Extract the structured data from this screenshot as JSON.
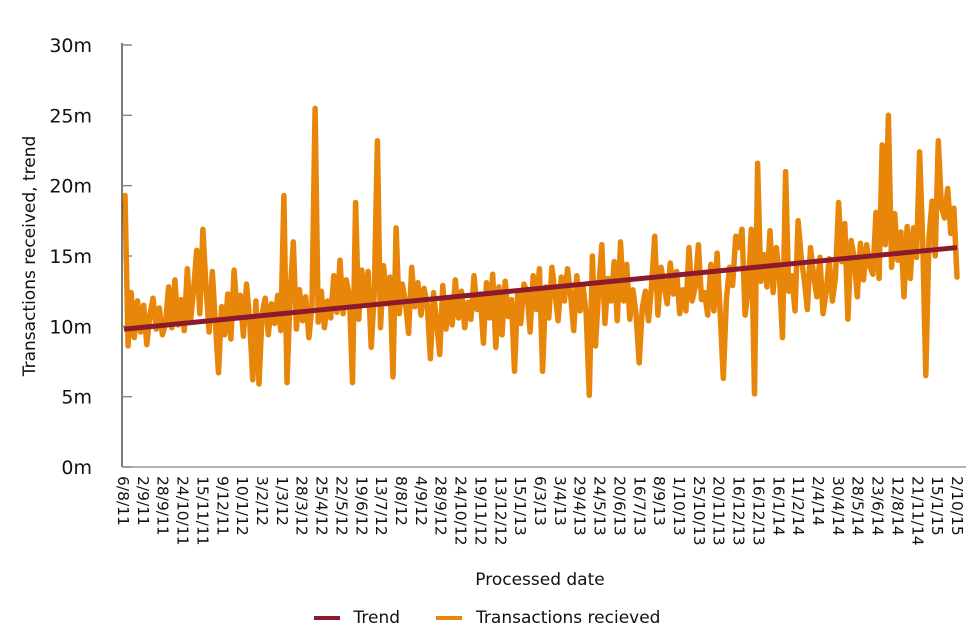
{
  "chart_data": {
    "type": "line",
    "title": "",
    "xlabel": "Processed date",
    "ylabel": "Transactions received, trend",
    "ylim": [
      0,
      30
    ],
    "y_unit": "m",
    "yticks": [
      "0m",
      "5m",
      "10m",
      "15m",
      "20m",
      "25m",
      "30m"
    ],
    "ytick_values": [
      0,
      5,
      10,
      15,
      20,
      25,
      30
    ],
    "xtick_labels": [
      "6/8/11",
      "2/9/11",
      "28/9/11",
      "24/10/11",
      "15/11/11",
      "9/12/11",
      "10/1/12",
      "3/2/12",
      "1/3/12",
      "28/3/12",
      "25/4/12",
      "22/5/12",
      "19/6/12",
      "13/7/12",
      "8/8/12",
      "4/9/12",
      "28/9/12",
      "24/10/12",
      "19/11/12",
      "13/12/12",
      "15/1/13",
      "6/3/13",
      "3/4/13",
      "29/4/13",
      "24/5/13",
      "20/6/13",
      "16/7/13",
      "8/9/13",
      "1/10/13",
      "25/10/13",
      "20/11/13",
      "16/12/13",
      "16/12/13",
      "16/1/14",
      "11/2/14",
      "2/4/14",
      "30/4/14",
      "28/5/14",
      "23/6/14",
      "12/8/14",
      "21/11/14",
      "15/1/15",
      "2/10/15"
    ],
    "grid": false,
    "legend_position": "bottom",
    "legend": [
      "Trend",
      "Transactions recieved"
    ],
    "colors": {
      "trend": "#8b1a2e",
      "transactions": "#e8860a",
      "axis": "#222222",
      "tick": "#888888"
    },
    "series": [
      {
        "name": "Transactions recieved",
        "values": [
          19.3,
          8.6,
          12.4,
          9.2,
          11.8,
          9.6,
          11.5,
          8.7,
          10.8,
          12.0,
          9.8,
          11.3,
          9.4,
          10.2,
          12.8,
          9.9,
          13.3,
          10.1,
          11.9,
          9.7,
          14.1,
          10.3,
          12.6,
          15.4,
          10.9,
          16.9,
          12.8,
          9.6,
          13.9,
          10.2,
          6.7,
          11.4,
          9.4,
          12.3,
          9.1,
          14.0,
          10.8,
          12.2,
          9.3,
          13.0,
          10.5,
          6.2,
          11.8,
          5.9,
          10.9,
          12.0,
          9.4,
          11.6,
          10.2,
          12.2,
          9.7,
          19.3,
          6.0,
          12.4,
          16.0,
          9.8,
          12.6,
          10.4,
          12.1,
          9.2,
          11.5,
          25.5,
          10.3,
          12.5,
          9.9,
          11.8,
          10.6,
          13.6,
          11.0,
          14.7,
          10.9,
          13.3,
          12.2,
          6.0,
          18.8,
          10.5,
          14.0,
          11.8,
          13.9,
          8.5,
          12.4,
          23.2,
          9.9,
          14.3,
          11.6,
          13.5,
          6.4,
          17.0,
          10.9,
          13.0,
          11.7,
          9.5,
          14.2,
          11.4,
          13.1,
          10.8,
          12.7,
          11.5,
          7.7,
          12.4,
          10.3,
          8.0,
          12.9,
          9.8,
          11.9,
          10.1,
          13.3,
          10.6,
          12.5,
          9.9,
          11.7,
          10.5,
          13.6,
          11.2,
          12.3,
          8.8,
          13.1,
          10.6,
          13.7,
          8.5,
          12.8,
          9.4,
          13.2,
          10.7,
          11.9,
          6.8,
          12.3,
          10.2,
          13.0,
          12.5,
          9.6,
          13.6,
          11.2,
          14.1,
          6.8,
          12.8,
          10.6,
          14.2,
          12.4,
          10.4,
          13.5,
          11.8,
          14.1,
          12.3,
          9.7,
          13.6,
          11.1,
          12.8,
          10.9,
          5.1,
          15.0,
          8.6,
          12.5,
          15.8,
          10.2,
          13.4,
          11.8,
          14.6,
          10.4,
          16.0,
          11.8,
          14.4,
          10.5,
          12.6,
          10.9,
          7.4,
          11.3,
          12.5,
          10.4,
          12.9,
          16.4,
          10.8,
          14.2,
          12.9,
          11.6,
          14.5,
          12.3,
          13.9,
          10.9,
          12.6,
          11.1,
          15.6,
          11.8,
          12.8,
          15.8,
          11.9,
          12.4,
          10.8,
          14.4,
          11.1,
          15.2,
          10.9,
          6.3,
          11.9,
          14.2,
          12.9,
          16.4,
          15.6,
          16.9,
          10.8,
          12.6,
          16.9,
          5.2,
          21.6,
          13.2,
          15.1,
          12.8,
          16.8,
          12.4,
          15.6,
          13.6,
          9.2,
          21.0,
          12.5,
          13.6,
          11.1,
          17.5,
          14.9,
          13.3,
          11.2,
          15.6,
          13.6,
          12.1,
          14.9,
          10.9,
          12.4,
          14.8,
          11.8,
          13.5,
          18.8,
          14.6,
          17.3,
          10.5,
          16.1,
          14.9,
          12.1,
          15.9,
          13.3,
          15.8,
          14.3,
          13.7,
          18.1,
          13.4,
          22.9,
          15.8,
          25.0,
          14.2,
          18.0,
          14.7,
          16.7,
          12.1,
          17.1,
          13.4,
          17.0,
          14.9,
          22.4,
          16.1,
          6.5,
          16.3,
          18.9,
          15.0,
          23.2,
          18.5,
          17.7,
          19.8,
          16.6,
          18.4,
          13.5
        ]
      },
      {
        "name": "Trend",
        "values": [
          9.8,
          15.6
        ]
      }
    ]
  }
}
